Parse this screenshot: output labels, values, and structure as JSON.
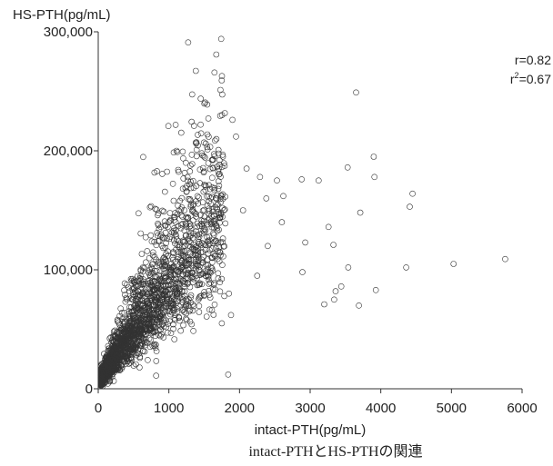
{
  "chart_data": {
    "type": "scatter",
    "title": "",
    "caption": "intact-PTHとHS-PTHの関連",
    "xlabel": "intact-PTH(pg/mL)",
    "ylabel": "HS-PTH(pg/mL)",
    "xlim": [
      0,
      6000
    ],
    "ylim": [
      0,
      300000
    ],
    "x_ticks": [
      0,
      1000,
      2000,
      3000,
      4000,
      5000,
      6000
    ],
    "x_tick_labels": [
      "0",
      "1000",
      "2000",
      "3000",
      "4000",
      "5000",
      "6000"
    ],
    "y_ticks": [
      0,
      100000,
      200000,
      300000
    ],
    "y_tick_labels": [
      "0",
      "100,000",
      "200,000",
      "300,000"
    ],
    "grid": false,
    "marker": "open-circle",
    "marker_color": "#333333",
    "stats": {
      "r": "r=0.82",
      "r2_prefix": "r",
      "r2_exp": "2",
      "r2_value": "=0.67"
    },
    "notable_points": [
      {
        "x": 3650,
        "y": 249000
      },
      {
        "x": 1450,
        "y": 222000
      },
      {
        "x": 1900,
        "y": 226000
      },
      {
        "x": 1950,
        "y": 212000
      },
      {
        "x": 1120,
        "y": 199000
      },
      {
        "x": 3900,
        "y": 195000
      },
      {
        "x": 3530,
        "y": 186000
      },
      {
        "x": 3910,
        "y": 178000
      },
      {
        "x": 2880,
        "y": 176000
      },
      {
        "x": 3120,
        "y": 175000
      },
      {
        "x": 4450,
        "y": 164000
      },
      {
        "x": 4410,
        "y": 153000
      },
      {
        "x": 3710,
        "y": 148000
      },
      {
        "x": 3260,
        "y": 136000
      },
      {
        "x": 2930,
        "y": 123000
      },
      {
        "x": 3330,
        "y": 121000
      },
      {
        "x": 5760,
        "y": 109000
      },
      {
        "x": 5030,
        "y": 105000
      },
      {
        "x": 4360,
        "y": 102000
      },
      {
        "x": 3540,
        "y": 102000
      },
      {
        "x": 2890,
        "y": 98000
      },
      {
        "x": 3440,
        "y": 86000
      },
      {
        "x": 3930,
        "y": 83000
      },
      {
        "x": 3360,
        "y": 82000
      },
      {
        "x": 3340,
        "y": 75000
      },
      {
        "x": 3200,
        "y": 71000
      },
      {
        "x": 3690,
        "y": 70000
      },
      {
        "x": 2380,
        "y": 160000
      },
      {
        "x": 2620,
        "y": 162000
      },
      {
        "x": 2100,
        "y": 185000
      },
      {
        "x": 2290,
        "y": 178000
      },
      {
        "x": 2530,
        "y": 175000
      },
      {
        "x": 1700,
        "y": 168000
      },
      {
        "x": 1850,
        "y": 80000
      },
      {
        "x": 1880,
        "y": 62000
      },
      {
        "x": 1750,
        "y": 55000
      },
      {
        "x": 1840,
        "y": 12000
      },
      {
        "x": 820,
        "y": 11000
      },
      {
        "x": 2400,
        "y": 120000
      },
      {
        "x": 2250,
        "y": 95000
      },
      {
        "x": 2600,
        "y": 140000
      },
      {
        "x": 2050,
        "y": 150000
      }
    ],
    "dense_cloud": {
      "n": 2600,
      "x_range": [
        40,
        1800
      ],
      "slope": 85,
      "spread": 0.35
    }
  }
}
